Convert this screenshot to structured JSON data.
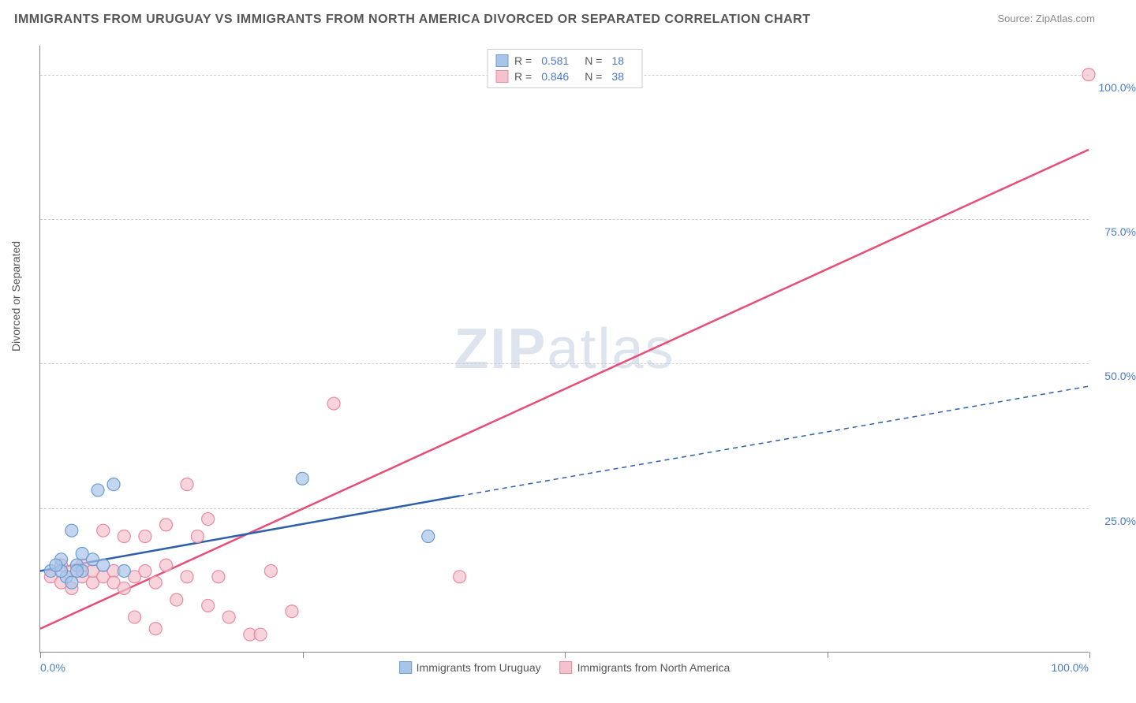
{
  "title": "IMMIGRANTS FROM URUGUAY VS IMMIGRANTS FROM NORTH AMERICA DIVORCED OR SEPARATED CORRELATION CHART",
  "source": "Source: ZipAtlas.com",
  "watermark_bold": "ZIP",
  "watermark_light": "atlas",
  "y_axis_title": "Divorced or Separated",
  "chart": {
    "type": "scatter-with-regression",
    "xlim": [
      0,
      100
    ],
    "ylim": [
      0,
      105
    ],
    "x_ticks": [
      0,
      25,
      50,
      75,
      100
    ],
    "y_ticks": [
      25,
      50,
      75,
      100
    ],
    "y_tick_labels": [
      "25.0%",
      "50.0%",
      "75.0%",
      "100.0%"
    ],
    "x_label_min": "0.0%",
    "x_label_max": "100.0%",
    "background_color": "#ffffff",
    "grid_color": "#cccccc",
    "axis_color": "#888888"
  },
  "series": [
    {
      "name": "Immigrants from Uruguay",
      "color_fill": "#a8c5e8",
      "color_stroke": "#6b9bd1",
      "line_color": "#2e5fa8",
      "r_label": "R =",
      "r_value": "0.581",
      "n_label": "N =",
      "n_value": "18",
      "marker_radius": 8,
      "points": [
        [
          1,
          14
        ],
        [
          2,
          16
        ],
        [
          2.5,
          13
        ],
        [
          3,
          21
        ],
        [
          3.5,
          15
        ],
        [
          4,
          14
        ],
        [
          5,
          16
        ],
        [
          5.5,
          28
        ],
        [
          6,
          15
        ],
        [
          7,
          29
        ],
        [
          8,
          14
        ],
        [
          3,
          12
        ],
        [
          4,
          17
        ],
        [
          2,
          14
        ],
        [
          25,
          30
        ],
        [
          37,
          20
        ],
        [
          1.5,
          15
        ],
        [
          3.5,
          14
        ]
      ],
      "regression": {
        "x1": 0,
        "y1": 14,
        "x2": 40,
        "y2": 27,
        "x2_ext": 100,
        "y2_ext": 46
      }
    },
    {
      "name": "Immigrants from North America",
      "color_fill": "#f4c2cd",
      "color_stroke": "#e88aa0",
      "line_color": "#e84d77",
      "r_label": "R =",
      "r_value": "0.846",
      "n_label": "N =",
      "n_value": "38",
      "marker_radius": 8,
      "points": [
        [
          1,
          13
        ],
        [
          2,
          12
        ],
        [
          2,
          15
        ],
        [
          3,
          14
        ],
        [
          3,
          11
        ],
        [
          4,
          13
        ],
        [
          4,
          15
        ],
        [
          5,
          12
        ],
        [
          5,
          14
        ],
        [
          6,
          13
        ],
        [
          6,
          21
        ],
        [
          7,
          14
        ],
        [
          7,
          12
        ],
        [
          8,
          11
        ],
        [
          8,
          20
        ],
        [
          9,
          13
        ],
        [
          9,
          6
        ],
        [
          10,
          14
        ],
        [
          10,
          20
        ],
        [
          11,
          12
        ],
        [
          12,
          15
        ],
        [
          12,
          22
        ],
        [
          13,
          9
        ],
        [
          14,
          13
        ],
        [
          14,
          29
        ],
        [
          15,
          20
        ],
        [
          16,
          8
        ],
        [
          16,
          23
        ],
        [
          17,
          13
        ],
        [
          18,
          6
        ],
        [
          20,
          3
        ],
        [
          21,
          3
        ],
        [
          22,
          14
        ],
        [
          24,
          7
        ],
        [
          28,
          43
        ],
        [
          40,
          13
        ],
        [
          11,
          4
        ],
        [
          100,
          100
        ]
      ],
      "regression": {
        "x1": 0,
        "y1": 4,
        "x2": 100,
        "y2": 87
      }
    }
  ]
}
